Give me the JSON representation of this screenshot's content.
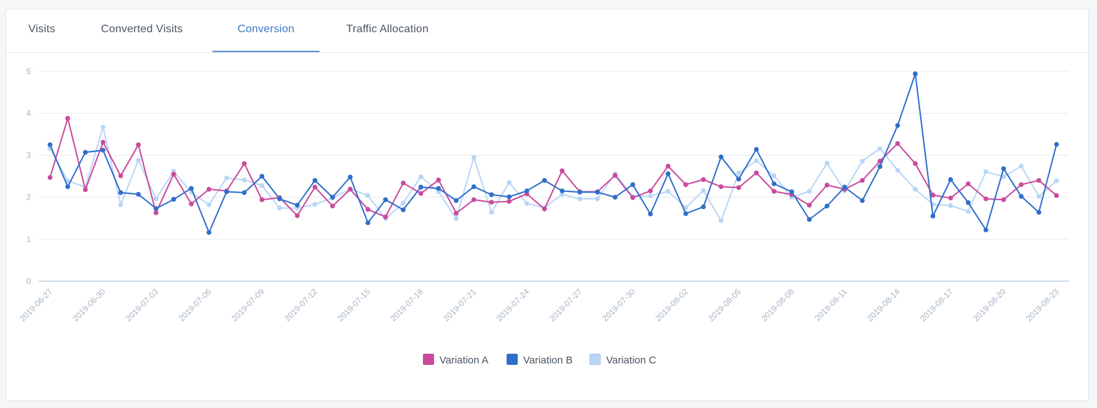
{
  "tabs": [
    {
      "label": "Visits",
      "active": false
    },
    {
      "label": "Converted Visits",
      "active": false
    },
    {
      "label": "Conversion",
      "active": true
    },
    {
      "label": "Traffic Allocation",
      "active": false
    }
  ],
  "chart_data": {
    "type": "line",
    "title": "",
    "xlabel": "",
    "ylabel": "",
    "ylim": [
      0,
      5
    ],
    "yticks": [
      0,
      1,
      2,
      3,
      4,
      5
    ],
    "grid": true,
    "legend_position": "bottom-center",
    "x": [
      "2019-06-27",
      "2019-06-28",
      "2019-06-29",
      "2019-06-30",
      "2019-07-01",
      "2019-07-02",
      "2019-07-03",
      "2019-07-04",
      "2019-07-05",
      "2019-07-06",
      "2019-07-07",
      "2019-07-08",
      "2019-07-09",
      "2019-07-10",
      "2019-07-11",
      "2019-07-12",
      "2019-07-13",
      "2019-07-14",
      "2019-07-15",
      "2019-07-16",
      "2019-07-17",
      "2019-07-18",
      "2019-07-19",
      "2019-07-20",
      "2019-07-21",
      "2019-07-22",
      "2019-07-23",
      "2019-07-24",
      "2019-07-25",
      "2019-07-26",
      "2019-07-27",
      "2019-07-28",
      "2019-07-29",
      "2019-07-30",
      "2019-07-31",
      "2019-08-01",
      "2019-08-02",
      "2019-08-03",
      "2019-08-04",
      "2019-08-05",
      "2019-08-06",
      "2019-08-07",
      "2019-08-08",
      "2019-08-09",
      "2019-08-10",
      "2019-08-11",
      "2019-08-12",
      "2019-08-13",
      "2019-08-14",
      "2019-08-15",
      "2019-08-16",
      "2019-08-17",
      "2019-08-18",
      "2019-08-19",
      "2019-08-20",
      "2019-08-21",
      "2019-08-22",
      "2019-08-23"
    ],
    "xtick_labels": [
      {
        "index": 0,
        "label": "2019-06-27"
      },
      {
        "index": 3,
        "label": "2019-06-30"
      },
      {
        "index": 6,
        "label": "2019-07-03"
      },
      {
        "index": 9,
        "label": "2019-07-06"
      },
      {
        "index": 12,
        "label": "2019-07-09"
      },
      {
        "index": 15,
        "label": "2019-07-12"
      },
      {
        "index": 18,
        "label": "2019-07-15"
      },
      {
        "index": 21,
        "label": "2019-07-18"
      },
      {
        "index": 24,
        "label": "2019-07-21"
      },
      {
        "index": 27,
        "label": "2019-07-24"
      },
      {
        "index": 30,
        "label": "2019-07-27"
      },
      {
        "index": 33,
        "label": "2019-07-30"
      },
      {
        "index": 36,
        "label": "2019-08-02"
      },
      {
        "index": 39,
        "label": "2019-08-05"
      },
      {
        "index": 42,
        "label": "2019-08-08"
      },
      {
        "index": 45,
        "label": "2019-08-11"
      },
      {
        "index": 48,
        "label": "2019-08-14"
      },
      {
        "index": 51,
        "label": "2019-08-17"
      },
      {
        "index": 54,
        "label": "2019-08-20"
      },
      {
        "index": 57,
        "label": "2019-08-23"
      }
    ],
    "series": [
      {
        "name": "Variation A",
        "color": "#c94a9c",
        "values": [
          2.47,
          3.88,
          2.18,
          3.31,
          2.51,
          3.25,
          1.63,
          2.55,
          1.84,
          2.19,
          2.15,
          2.8,
          1.94,
          1.99,
          1.56,
          2.24,
          1.79,
          2.19,
          1.71,
          1.53,
          2.34,
          2.09,
          2.41,
          1.62,
          1.94,
          1.88,
          1.9,
          2.08,
          1.72,
          2.63,
          2.13,
          2.13,
          2.52,
          1.99,
          2.15,
          2.74,
          2.3,
          2.42,
          2.25,
          2.23,
          2.58,
          2.14,
          2.06,
          1.81,
          2.29,
          2.19,
          2.4,
          2.86,
          3.28,
          2.8,
          2.05,
          1.98,
          2.32,
          1.96,
          1.94,
          2.3,
          2.4,
          2.04
        ]
      },
      {
        "name": "Variation B",
        "color": "#2f6ecb",
        "values": [
          3.25,
          2.25,
          3.07,
          3.12,
          2.11,
          2.07,
          1.73,
          1.95,
          2.21,
          1.16,
          2.13,
          2.11,
          2.5,
          1.96,
          1.81,
          2.4,
          2.0,
          2.48,
          1.39,
          1.94,
          1.7,
          2.24,
          2.21,
          1.92,
          2.25,
          2.06,
          2.01,
          2.15,
          2.4,
          2.15,
          2.12,
          2.12,
          2.0,
          2.3,
          1.6,
          2.56,
          1.61,
          1.77,
          2.96,
          2.43,
          3.14,
          2.32,
          2.13,
          1.47,
          1.79,
          2.24,
          1.92,
          2.73,
          3.71,
          4.94,
          1.55,
          2.42,
          1.87,
          1.22,
          2.68,
          2.02,
          1.64,
          3.26
        ]
      },
      {
        "name": "Variation C",
        "color": "#b8d6f6",
        "values": [
          3.16,
          2.39,
          2.24,
          3.67,
          1.82,
          2.88,
          1.96,
          2.62,
          2.12,
          1.82,
          2.46,
          2.41,
          2.28,
          1.74,
          1.74,
          1.83,
          1.98,
          2.2,
          2.04,
          1.49,
          1.86,
          2.49,
          2.13,
          1.49,
          2.95,
          1.64,
          2.35,
          1.85,
          1.75,
          2.07,
          1.96,
          1.96,
          2.56,
          2.02,
          2.03,
          2.14,
          1.75,
          2.16,
          1.44,
          2.58,
          2.87,
          2.51,
          2.0,
          2.14,
          2.81,
          2.15,
          2.86,
          3.16,
          2.64,
          2.19,
          1.83,
          1.8,
          1.66,
          2.61,
          2.49,
          2.74,
          2.02,
          2.39
        ]
      }
    ]
  }
}
